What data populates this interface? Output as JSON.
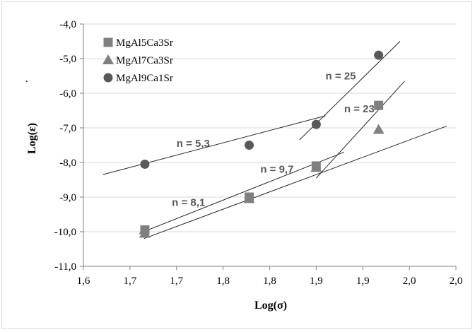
{
  "chart_data": {
    "type": "scatter",
    "xlabel": "Log(σ)",
    "ylabel": "Log(ε)",
    "xlim": [
      1.65,
      2.05
    ],
    "ylim": [
      -11.0,
      -4.0
    ],
    "x_tick_values": [
      1.65,
      1.7,
      1.75,
      1.8,
      1.85,
      1.9,
      1.95,
      2.0,
      2.05
    ],
    "x_tick_labels": [
      "1,6",
      "1,7",
      "1,7",
      "1,8",
      "1,8",
      "1,9",
      "1,9",
      "2,0",
      "2,0"
    ],
    "y_tick_values": [
      -4,
      -5,
      -6,
      -7,
      -8,
      -9,
      -10,
      -11
    ],
    "y_tick_labels": [
      "-4,0",
      "-5,0",
      "-6,0",
      "-7,0",
      "-8,0",
      "-9,0",
      "-10,0",
      "-11,0"
    ],
    "grid": "horizontal",
    "legend_position": "top-left",
    "stray_mark": ".",
    "series": [
      {
        "name": "MgAl5Ca3Sr",
        "marker": "square",
        "color": "#7f7f7f",
        "x": [
          1.716,
          1.828,
          1.9,
          1.967
        ],
        "y": [
          -9.95,
          -9.0,
          -8.1,
          -6.35
        ],
        "fits": [
          {
            "x": [
              1.715,
              2.04
            ],
            "y": [
              -10.2,
              -6.95
            ]
          },
          {
            "x": [
              1.9,
              1.995
            ],
            "y": [
              -8.45,
              -5.65
            ]
          }
        ]
      },
      {
        "name": "MgAl7Ca3Sr",
        "marker": "triangle",
        "color": "#808080",
        "x": [
          1.716,
          1.828,
          1.9,
          1.967
        ],
        "y": [
          -10.05,
          -9.05,
          -8.15,
          -7.05
        ],
        "fits": [
          {
            "x": [
              1.71,
              1.93
            ],
            "y": [
              -10.05,
              -7.7
            ]
          }
        ]
      },
      {
        "name": "MgAl9Ca1Sr",
        "marker": "circle",
        "color": "#595959",
        "x": [
          1.716,
          1.828,
          1.9,
          1.967
        ],
        "y": [
          -8.05,
          -7.5,
          -6.9,
          -4.9
        ],
        "fits": [
          {
            "x": [
              1.671,
              1.91
            ],
            "y": [
              -8.35,
              -6.65
            ]
          },
          {
            "x": [
              1.882,
              1.99
            ],
            "y": [
              -7.35,
              -4.5
            ]
          }
        ]
      }
    ],
    "annotations": [
      {
        "text": "n = 25",
        "x": 1.91,
        "y": -5.6
      },
      {
        "text": "n = 23",
        "x": 1.93,
        "y": -6.55
      },
      {
        "text": "n = 5,3",
        "x": 1.75,
        "y": -7.55
      },
      {
        "text": "n = 9,7",
        "x": 1.84,
        "y": -8.3
      },
      {
        "text": "n = 8,1",
        "x": 1.745,
        "y": -9.25
      }
    ]
  }
}
